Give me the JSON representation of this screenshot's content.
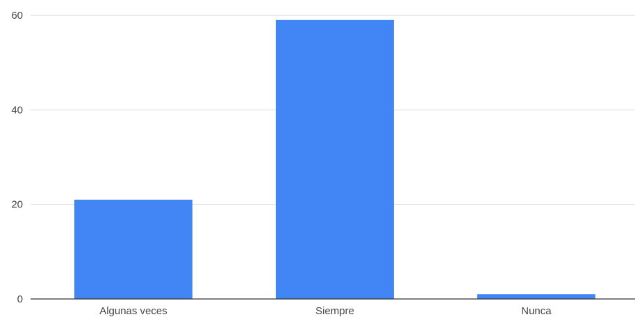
{
  "chart_data": {
    "type": "bar",
    "title": "",
    "xlabel": "",
    "ylabel": "",
    "categories": [
      "Algunas veces",
      "Siempre",
      "Nunca"
    ],
    "values": [
      21,
      59,
      1
    ],
    "ylim": [
      0,
      60
    ],
    "yticks": [
      0,
      20,
      40,
      60
    ],
    "grid": true,
    "legend": "none",
    "bar_color": "#4285F4"
  }
}
